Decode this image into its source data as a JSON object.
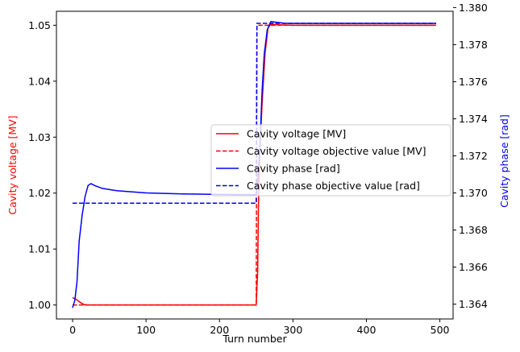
{
  "chart_data": {
    "type": "line",
    "xlabel": "Turn number",
    "ylabel_left": "Cavity voltage [MV]",
    "ylabel_right": "Cavity phase [rad]",
    "xlim": [
      -22,
      518
    ],
    "ylim_left": [
      0.9975,
      1.0525
    ],
    "ylim_right": [
      1.3632,
      1.3798
    ],
    "x_ticks": [
      0,
      100,
      200,
      300,
      400,
      500
    ],
    "y_left_ticks": [
      1.0,
      1.01,
      1.02,
      1.03,
      1.04,
      1.05
    ],
    "y_right_ticks": [
      1.364,
      1.366,
      1.368,
      1.37,
      1.372,
      1.374,
      1.376,
      1.378,
      1.38
    ],
    "legend_position": "center-right",
    "series": [
      {
        "name": "Cavity voltage [MV]",
        "axis": "left",
        "color": "#ff0000",
        "dash": "solid",
        "points": [
          [
            0,
            1.0013
          ],
          [
            5,
            1.001
          ],
          [
            10,
            1.0005
          ],
          [
            15,
            1.0001
          ],
          [
            20,
            1.0
          ],
          [
            30,
            1.0
          ],
          [
            60,
            1.0
          ],
          [
            100,
            1.0
          ],
          [
            150,
            1.0
          ],
          [
            200,
            1.0
          ],
          [
            245,
            1.0
          ],
          [
            250,
            1.0
          ],
          [
            252,
            1.006
          ],
          [
            253,
            1.018
          ],
          [
            255,
            1.028
          ],
          [
            258,
            1.036
          ],
          [
            262,
            1.045
          ],
          [
            266,
            1.0495
          ],
          [
            270,
            1.0502
          ],
          [
            280,
            1.0501
          ],
          [
            300,
            1.05
          ],
          [
            400,
            1.05
          ],
          [
            495,
            1.05
          ]
        ]
      },
      {
        "name": "Cavity voltage objective value [MV]",
        "axis": "left",
        "color": "#ff0000",
        "dash": "dashed",
        "points": [
          [
            0,
            1.0
          ],
          [
            250,
            1.0
          ],
          [
            251,
            1.05
          ],
          [
            495,
            1.05
          ]
        ]
      },
      {
        "name": "Cavity phase [rad]",
        "axis": "right",
        "color": "#0000ff",
        "dash": "solid",
        "points": [
          [
            0,
            1.3638
          ],
          [
            3,
            1.3642
          ],
          [
            6,
            1.3652
          ],
          [
            9,
            1.3674
          ],
          [
            13,
            1.3688
          ],
          [
            17,
            1.3698
          ],
          [
            21,
            1.3704
          ],
          [
            25,
            1.3705
          ],
          [
            30,
            1.3704
          ],
          [
            40,
            1.37025
          ],
          [
            60,
            1.37012
          ],
          [
            100,
            1.37
          ],
          [
            150,
            1.36995
          ],
          [
            200,
            1.36992
          ],
          [
            250,
            1.3699
          ],
          [
            252,
            1.3705
          ],
          [
            255,
            1.3725
          ],
          [
            258,
            1.3755
          ],
          [
            261,
            1.3775
          ],
          [
            265,
            1.3788
          ],
          [
            270,
            1.37925
          ],
          [
            278,
            1.3792
          ],
          [
            290,
            1.37915
          ],
          [
            400,
            1.37915
          ],
          [
            495,
            1.37915
          ]
        ]
      },
      {
        "name": "Cavity phase objective value [rad]",
        "axis": "right",
        "color": "#0000ff",
        "dash": "dashed",
        "points": [
          [
            0,
            1.36945
          ],
          [
            250,
            1.36945
          ],
          [
            251,
            1.37915
          ],
          [
            495,
            1.37915
          ]
        ]
      }
    ]
  }
}
